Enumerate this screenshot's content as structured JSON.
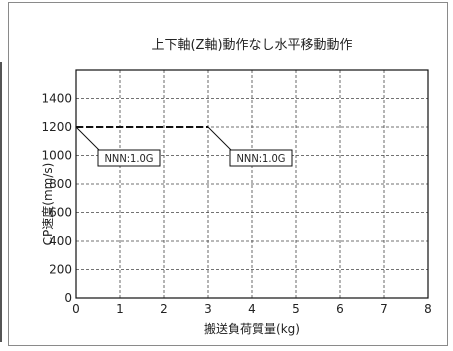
{
  "chart_data": {
    "type": "line",
    "title": "上下軸(Z軸)動作なし水平移動動作",
    "xlabel": "搬送負荷質量(kg)",
    "ylabel": "CP速度(mm/s)",
    "xlim": [
      0,
      8
    ],
    "ylim": [
      0,
      1600
    ],
    "xticks": [
      "0",
      "1",
      "2",
      "3",
      "4",
      "5",
      "6",
      "7",
      "8"
    ],
    "yticks": [
      "0",
      "200",
      "400",
      "600",
      "800",
      "1000",
      "1200",
      "1400"
    ],
    "grid": true,
    "series": [
      {
        "name": "",
        "x": [
          0,
          3
        ],
        "y": [
          1200,
          1200
        ],
        "style": "dashed",
        "color": "#111111"
      }
    ],
    "annotations": [
      {
        "text": "NNN:1.0G",
        "point": [
          0,
          1200
        ]
      },
      {
        "text": "NNN:1.0G",
        "point": [
          3,
          1200
        ]
      }
    ]
  }
}
